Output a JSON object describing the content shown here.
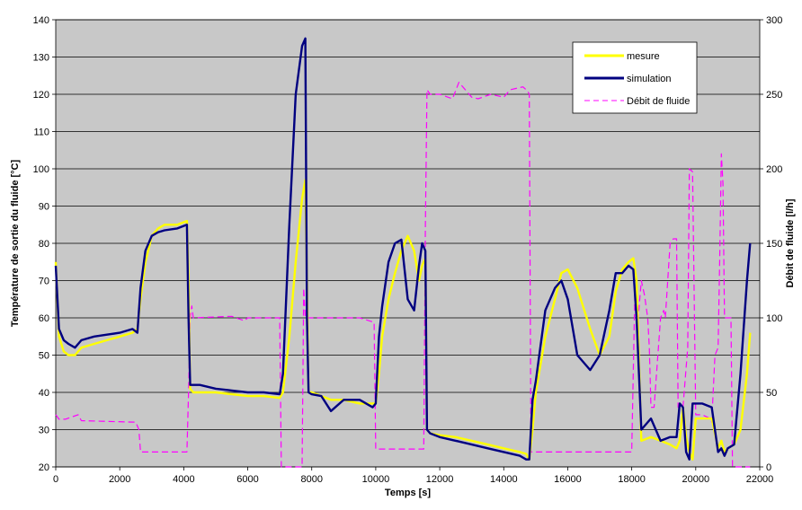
{
  "chart_data": {
    "type": "line",
    "title": "",
    "xlabel": "Temps [s]",
    "ylabel": "Température de sortie du fluide [°C]",
    "y2label": "Débit de fluide [l/h]",
    "xlim": [
      0,
      22000
    ],
    "ylim": [
      20,
      140
    ],
    "y2lim": [
      0,
      300
    ],
    "x_ticks": [
      "0",
      "2000",
      "4000",
      "6000",
      "8000",
      "10000",
      "12000",
      "14000",
      "16000",
      "18000",
      "20000",
      "22000"
    ],
    "y_ticks": [
      "20",
      "30",
      "40",
      "50",
      "60",
      "70",
      "80",
      "90",
      "100",
      "110",
      "120",
      "130",
      "140"
    ],
    "y2_ticks": [
      "0",
      "50",
      "100",
      "150",
      "200",
      "250",
      "300"
    ],
    "grid": "horizontal",
    "legend_position": "top-right",
    "colors": {
      "plot_background": "#c8c8c8",
      "grid": "#000000",
      "mesure": "#ffff00",
      "simulation": "#000080",
      "debit": "#ff00ff"
    },
    "series": [
      {
        "name": "mesure",
        "axis": "left",
        "style": "solid",
        "color": "#ffff00",
        "x": [
          0,
          100,
          250,
          400,
          600,
          800,
          1200,
          1600,
          2000,
          2400,
          2550,
          2650,
          2800,
          3000,
          3200,
          3400,
          3800,
          4100,
          4150,
          4200,
          4300,
          4500,
          5000,
          5500,
          6000,
          6500,
          7000,
          7100,
          7300,
          7500,
          7700,
          7800,
          7850,
          7900,
          8000,
          8300,
          8600,
          9000,
          9500,
          9900,
          10000,
          10100,
          10200,
          10400,
          10600,
          10800,
          11000,
          11200,
          11350,
          11450,
          11550,
          11600,
          11700,
          12000,
          12500,
          13000,
          13500,
          14000,
          14500,
          14700,
          14800,
          14900,
          15000,
          15300,
          15600,
          15800,
          16000,
          16300,
          16700,
          17000,
          17300,
          17500,
          17700,
          17900,
          18050,
          18150,
          18300,
          18600,
          18900,
          19200,
          19400,
          19500,
          19600,
          19700,
          19800,
          19900,
          20000,
          20200,
          20500,
          20700,
          20800,
          20900,
          21000,
          21200,
          21400,
          21600,
          21700
        ],
        "y": [
          75,
          55,
          51,
          50,
          50,
          52,
          53,
          54,
          55,
          56,
          57,
          65,
          75,
          82,
          84,
          85,
          85,
          86,
          70,
          41,
          40,
          40,
          40,
          39.5,
          39,
          39,
          38.5,
          40,
          55,
          75,
          92,
          97,
          70,
          40,
          40,
          39,
          38,
          38,
          37,
          37,
          37,
          45,
          55,
          65,
          72,
          78,
          82,
          78,
          70,
          74,
          76,
          30,
          29,
          28.5,
          28,
          27,
          26,
          25,
          24,
          23.5,
          22,
          30,
          40,
          55,
          65,
          72,
          73,
          68,
          57,
          50,
          55,
          67,
          73,
          75,
          76,
          70,
          27,
          28,
          27,
          26,
          25,
          27,
          36,
          28,
          24,
          22,
          33,
          33,
          33,
          25,
          27,
          24,
          25,
          26,
          30,
          45,
          56
        ]
      },
      {
        "name": "simulation",
        "axis": "left",
        "style": "solid",
        "color": "#000080",
        "x": [
          0,
          100,
          250,
          400,
          600,
          800,
          1200,
          1600,
          2000,
          2400,
          2550,
          2650,
          2800,
          3000,
          3200,
          3400,
          3800,
          4100,
          4150,
          4200,
          4300,
          4500,
          5000,
          5500,
          6000,
          6500,
          7000,
          7100,
          7300,
          7500,
          7700,
          7800,
          7850,
          7900,
          8000,
          8300,
          8600,
          9000,
          9500,
          9900,
          10000,
          10100,
          10200,
          10400,
          10600,
          10800,
          11000,
          11200,
          11350,
          11450,
          11550,
          11600,
          11700,
          12000,
          12500,
          13000,
          13500,
          14000,
          14500,
          14700,
          14800,
          14900,
          15000,
          15300,
          15600,
          15800,
          16000,
          16300,
          16700,
          17000,
          17300,
          17500,
          17700,
          17900,
          18050,
          18150,
          18300,
          18600,
          18900,
          19200,
          19400,
          19500,
          19600,
          19700,
          19800,
          19900,
          20000,
          20200,
          20500,
          20700,
          20800,
          20900,
          21000,
          21200,
          21400,
          21600,
          21700
        ],
        "y": [
          74,
          57,
          54,
          53,
          52,
          54,
          55,
          55.5,
          56,
          57,
          56,
          68,
          78,
          82,
          83,
          83.5,
          84,
          85,
          60,
          42,
          42,
          42,
          41,
          40.5,
          40,
          40,
          39.5,
          45,
          85,
          120,
          133,
          135,
          60,
          40,
          39.5,
          39,
          35,
          38,
          38,
          36,
          37,
          55,
          63,
          75,
          80,
          81,
          65,
          62,
          74,
          80,
          78,
          30,
          29,
          28,
          27,
          26,
          25,
          24,
          23,
          22,
          22,
          38,
          43,
          62,
          68,
          70,
          65,
          50,
          46,
          50,
          62,
          72,
          72,
          74,
          73,
          60,
          30,
          33,
          27,
          28,
          28,
          37,
          36,
          24,
          22,
          37,
          37,
          37,
          36,
          24,
          25,
          23,
          25,
          26,
          45,
          70,
          80
        ]
      },
      {
        "name": "Débit de fluide",
        "axis": "right",
        "style": "dashed",
        "color": "#ff00ff",
        "x": [
          0,
          100,
          300,
          700,
          800,
          2500,
          2600,
          2650,
          4100,
          4150,
          4200,
          4250,
          4300,
          5500,
          5900,
          6000,
          7000,
          7050,
          7700,
          7750,
          7800,
          7850,
          8000,
          9500,
          9800,
          9950,
          10000,
          11500,
          11550,
          11600,
          11700,
          12000,
          12400,
          12600,
          13000,
          13200,
          13600,
          14000,
          14200,
          14600,
          14750,
          14800,
          14850,
          15000,
          16000,
          17000,
          18000,
          18100,
          18200,
          18300,
          18400,
          18500,
          18550,
          18600,
          18700,
          18900,
          19000,
          19050,
          19200,
          19300,
          19400,
          19450,
          19600,
          19750,
          19800,
          19900,
          20000,
          20200,
          20400,
          20500,
          20600,
          20700,
          20750,
          20800,
          20850,
          20900,
          21000,
          21100,
          21150,
          21200,
          21700
        ],
        "y": [
          35,
          32,
          32,
          35,
          31,
          30,
          25,
          10,
          10,
          50,
          100,
          108,
          100,
          101,
          98,
          100,
          100,
          0,
          0,
          120,
          100,
          100,
          100,
          100,
          98,
          97,
          12,
          12,
          160,
          253,
          250,
          250,
          247,
          258,
          248,
          247,
          250,
          248,
          253,
          255,
          252,
          250,
          10,
          10,
          10,
          10,
          10,
          120,
          100,
          125,
          115,
          100,
          80,
          40,
          40,
          100,
          105,
          100,
          150,
          153,
          153,
          40,
          40,
          80,
          200,
          198,
          35,
          35,
          33,
          30,
          75,
          80,
          140,
          210,
          190,
          100,
          100,
          100,
          0,
          0,
          0
        ]
      }
    ]
  }
}
